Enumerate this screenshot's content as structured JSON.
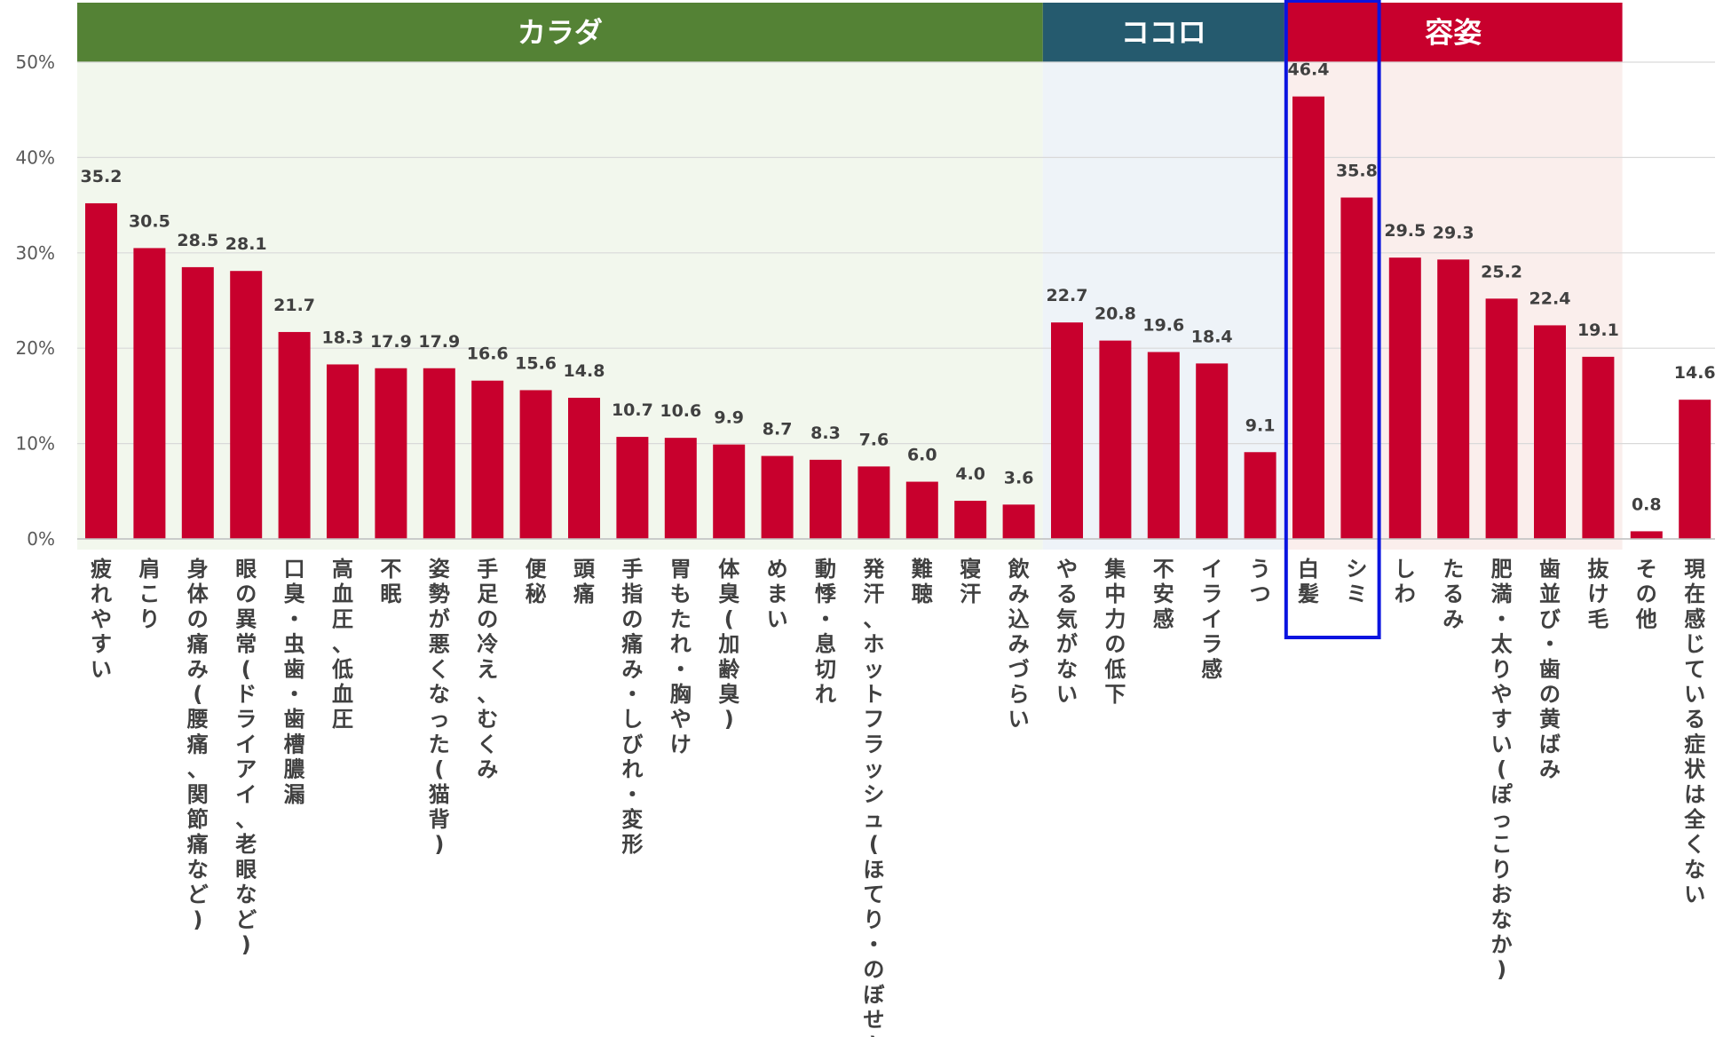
{
  "chart_data": {
    "type": "bar",
    "ylim": [
      0,
      50
    ],
    "yticks": [
      "0%",
      "10%",
      "20%",
      "30%",
      "40%",
      "50%"
    ],
    "grid": true,
    "bar_color": "#c8002d",
    "groups": [
      {
        "name": "カラダ",
        "header_color": "#548235",
        "bg_color": "#f2f7ed",
        "start": 0,
        "end": 19
      },
      {
        "name": "ココロ",
        "header_color": "#255a6e",
        "bg_color": "#eef3f8",
        "start": 20,
        "end": 24
      },
      {
        "name": "容姿",
        "header_color": "#c8002d",
        "bg_color": "#faeeec",
        "start": 25,
        "end": 31
      }
    ],
    "highlight": {
      "start": 25,
      "end": 26,
      "color": "#0a14e0"
    },
    "categories": [
      "疲れやすい",
      "肩こり",
      "身体の痛み(腰痛、関節痛など)",
      "眼の異常(ドライアイ、老眼など)",
      "口臭・虫歯・歯槽膿漏",
      "高血圧、低血圧",
      "不眠",
      "姿勢が悪くなった(猫背)",
      "手足の冷え、むくみ",
      "便秘",
      "頭痛",
      "手指の痛み・しびれ・変形",
      "胃もたれ・胸やけ",
      "体臭(加齢臭)",
      "めまい",
      "動悸・息切れ",
      "発汗、ホットフラッシュ(ほてり・のぼせ)",
      "難聴",
      "寝汗",
      "飲み込みづらい",
      "やる気がない",
      "集中力の低下",
      "不安感",
      "イライラ感",
      "うつ",
      "白髪",
      "シミ",
      "しわ",
      "たるみ",
      "肥満・太りやすい(ぽっこりおなか)",
      "歯並び・歯の黄ばみ",
      "抜け毛",
      "その他",
      "現在感じている症状は全くない"
    ],
    "values": [
      35.2,
      30.5,
      28.5,
      28.1,
      21.7,
      18.3,
      17.9,
      17.9,
      16.6,
      15.6,
      14.8,
      10.7,
      10.6,
      9.9,
      8.7,
      8.3,
      7.6,
      6.0,
      4.0,
      3.6,
      22.7,
      20.8,
      19.6,
      18.4,
      9.1,
      46.4,
      35.8,
      29.5,
      29.3,
      25.2,
      22.4,
      19.1,
      0.8,
      14.6
    ],
    "value_labels": [
      "35.2",
      "30.5",
      "28.5",
      "28.1",
      "21.7",
      "18.3",
      "17.9",
      "17.9",
      "16.6",
      "15.6",
      "14.8",
      "10.7",
      "10.6",
      "9.9",
      "8.7",
      "8.3",
      "7.6",
      "6.0",
      "4.0",
      "3.6",
      "22.7",
      "20.8",
      "19.6",
      "18.4",
      "9.1",
      "46.4",
      "35.8",
      "29.5",
      "29.3",
      "25.2",
      "22.4",
      "19.1",
      "0.8",
      "14.6"
    ]
  }
}
